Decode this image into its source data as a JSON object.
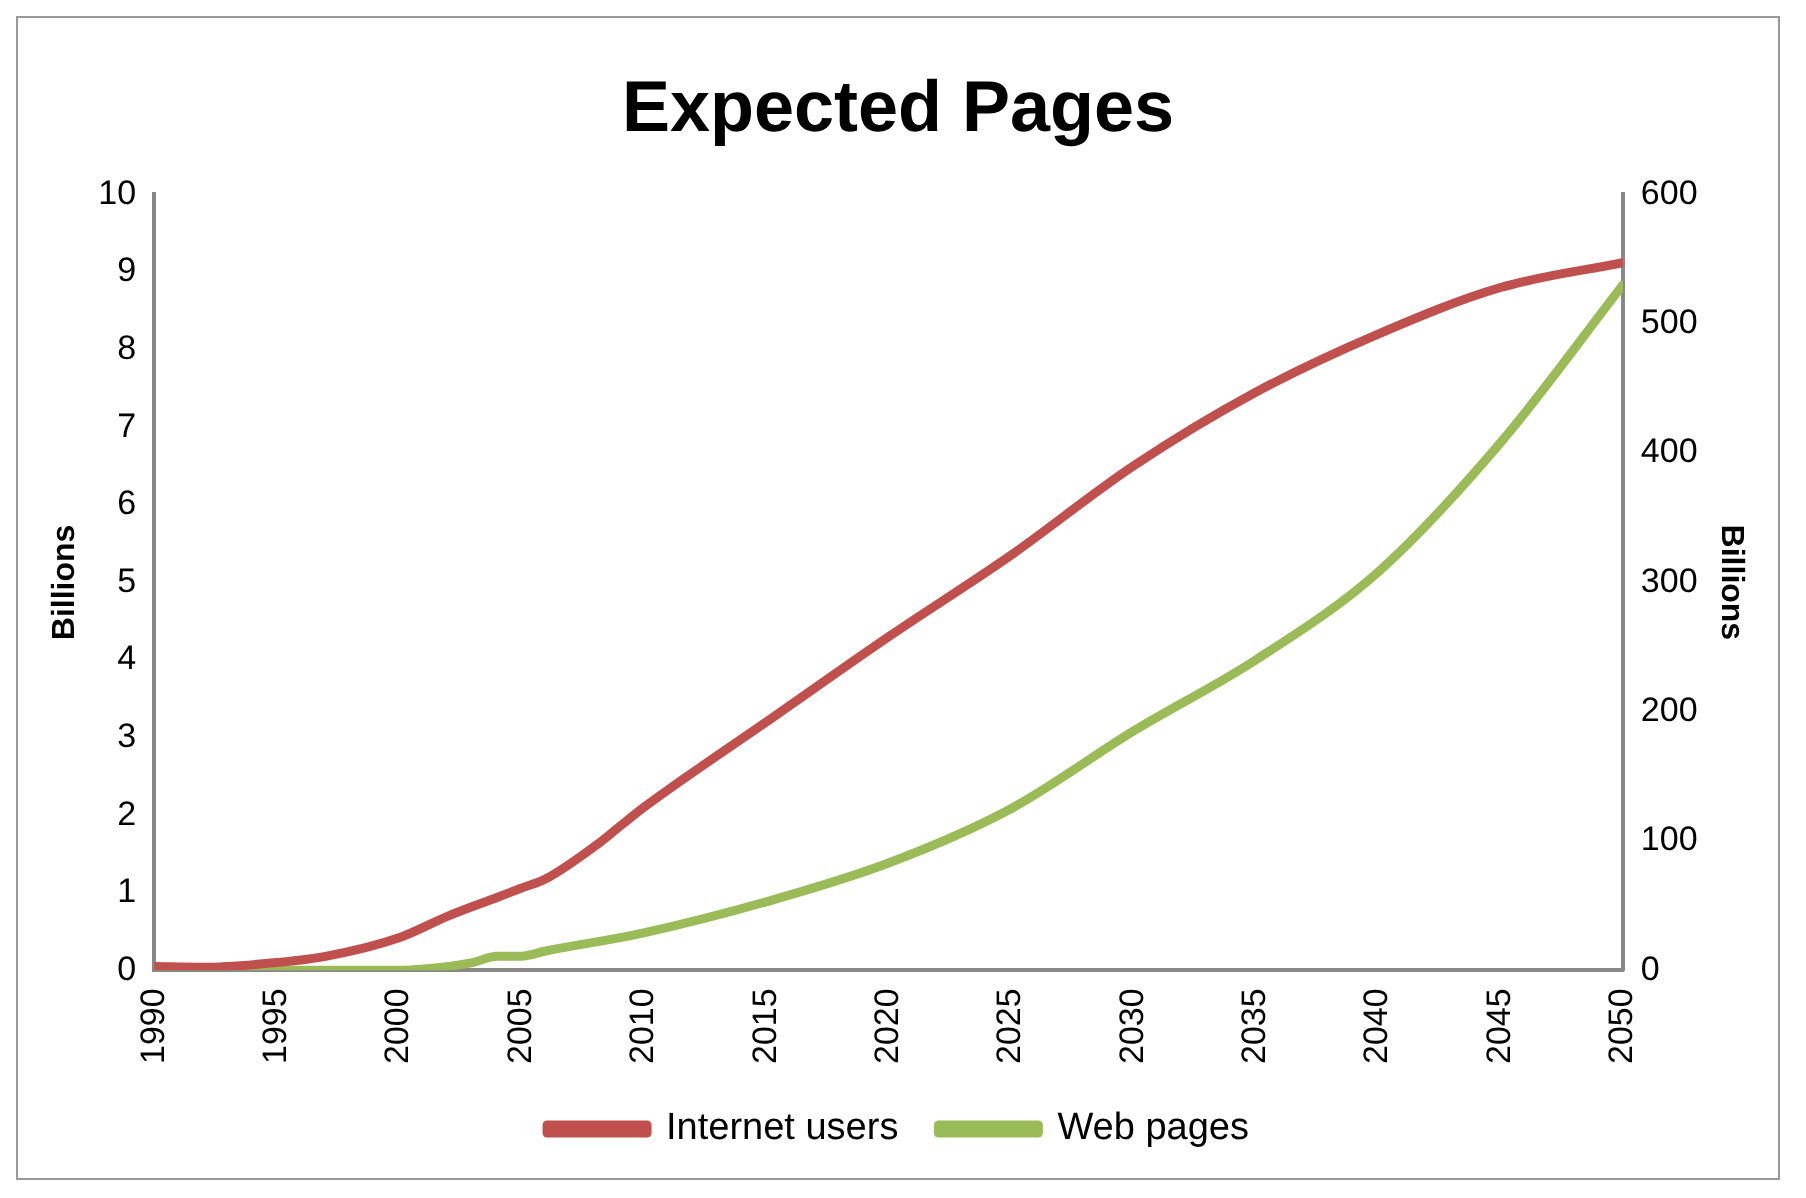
{
  "chart_data": {
    "type": "line",
    "title": "Expected Pages",
    "ylabel": "Billions",
    "y2label": "Billions",
    "xlim": [
      1990,
      2050
    ],
    "xticks": [
      1990,
      1995,
      2000,
      2005,
      2010,
      2015,
      2020,
      2025,
      2030,
      2035,
      2040,
      2045,
      2050
    ],
    "ylim": [
      0,
      10
    ],
    "yticks": [
      0,
      1,
      2,
      3,
      4,
      5,
      6,
      7,
      8,
      9,
      10
    ],
    "y2lim": [
      0,
      600
    ],
    "y2ticks": [
      0,
      100,
      200,
      300,
      400,
      500,
      600
    ],
    "grid": false,
    "legend": "bottom",
    "marker": "none",
    "line_style": "solid",
    "series": [
      {
        "name": "Internet users",
        "color": "#c0504d",
        "x": [
          1990,
          1992,
          1995,
          1997,
          2000,
          2002,
          2004,
          2005,
          2006,
          2008,
          2009,
          2010,
          2015,
          2020,
          2025,
          2030,
          2035,
          2040,
          2045,
          2050
        ],
        "values": [
          0.05,
          0.04,
          0.1,
          0.18,
          0.42,
          0.7,
          0.94,
          1.06,
          1.18,
          1.6,
          1.85,
          2.1,
          3.2,
          4.3,
          5.35,
          6.5,
          7.45,
          8.2,
          8.8,
          9.12
        ]
      },
      {
        "name": "Web pages",
        "color": "#9bbb59",
        "axis": "y2",
        "x": [
          1990,
          1995,
          2000,
          2001,
          2003,
          2004,
          2005,
          2006,
          2010,
          2015,
          2020,
          2025,
          2030,
          2035,
          2040,
          2045,
          2050
        ],
        "values": [
          0,
          0,
          0,
          1,
          6,
          11,
          11,
          15,
          29,
          53,
          83,
          125,
          185,
          240,
          308,
          408,
          530
        ]
      }
    ]
  }
}
